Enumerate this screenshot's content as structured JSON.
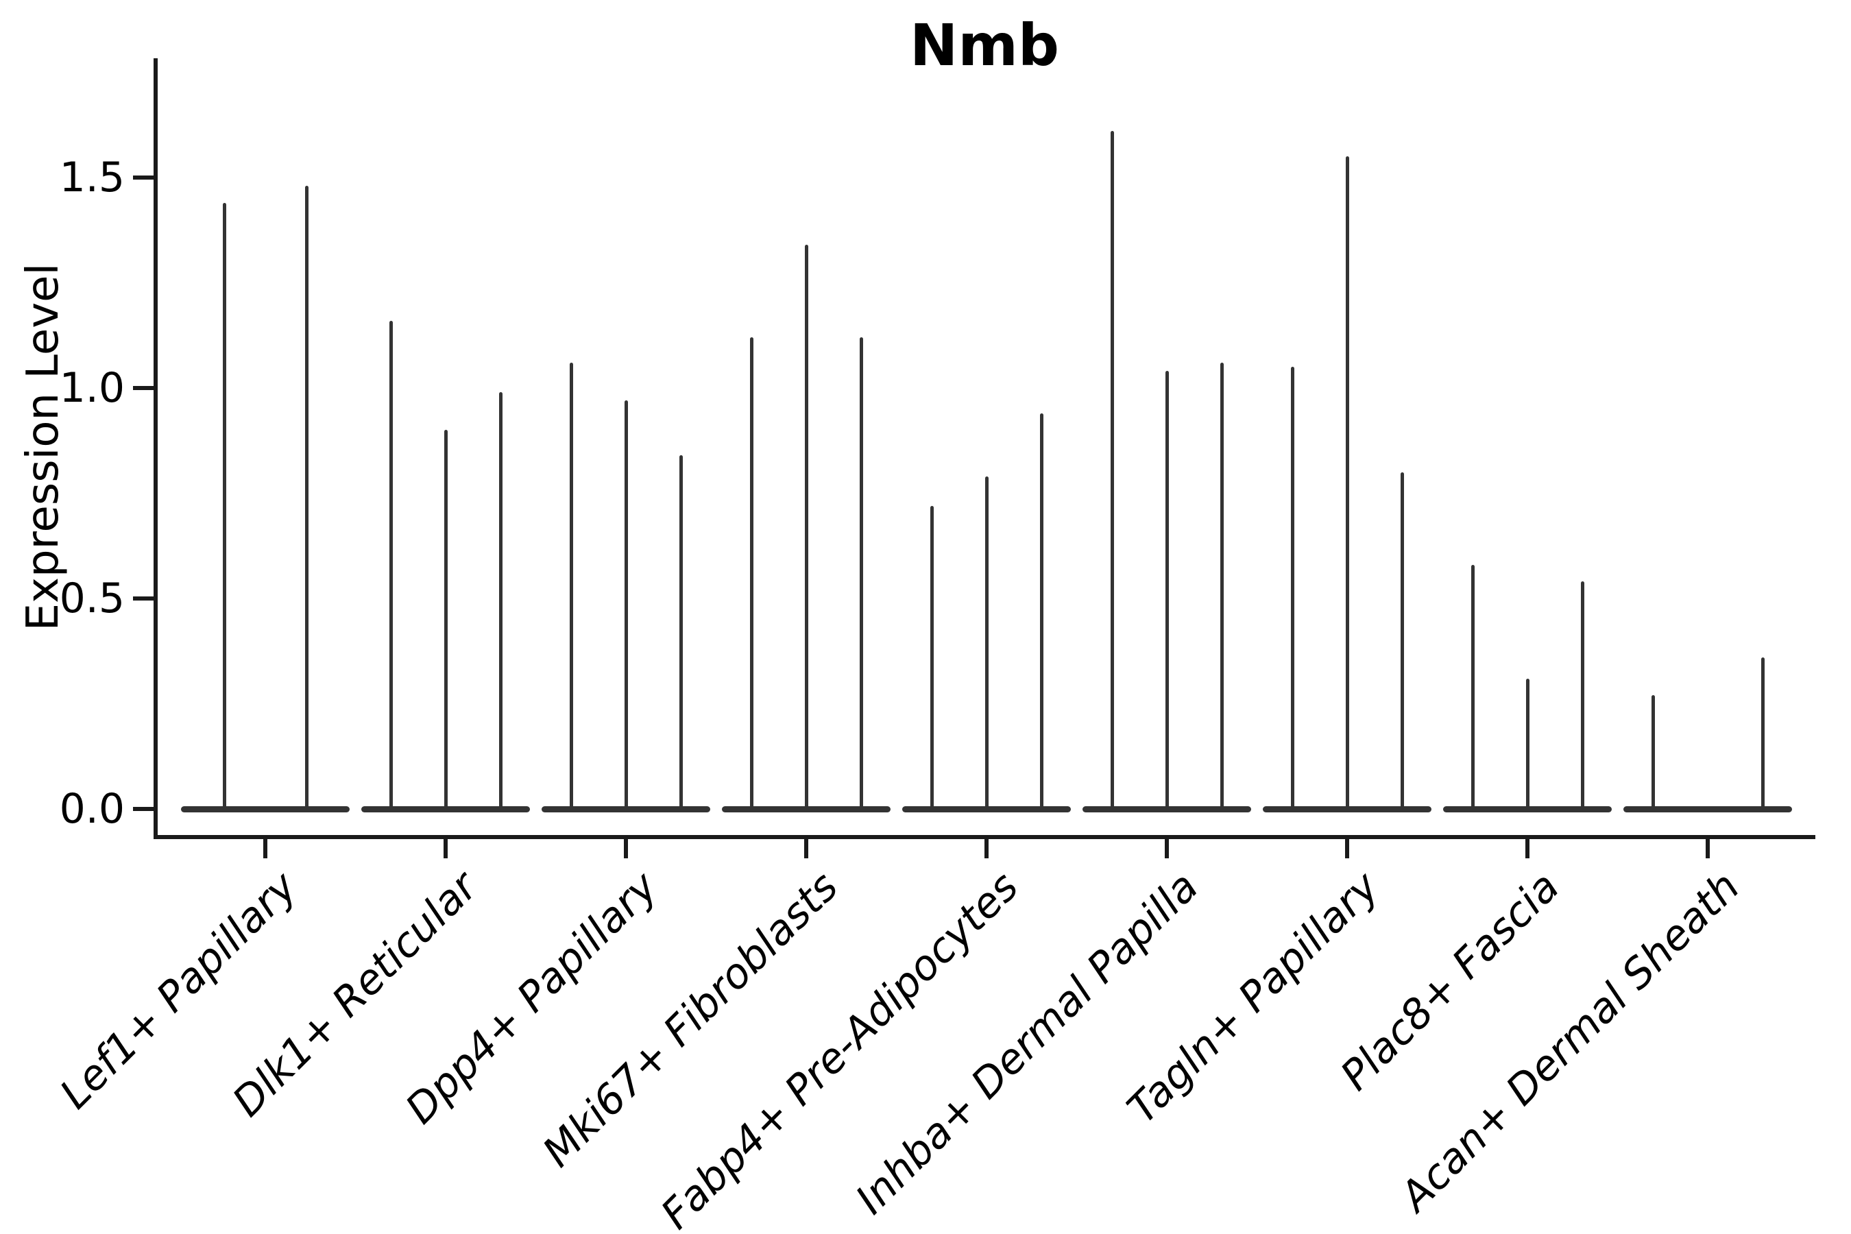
{
  "chart_data": {
    "type": "violin",
    "title": "Nmb",
    "xlabel": "",
    "ylabel": "Expression Level",
    "ylim": [
      -0.07,
      1.78
    ],
    "yticks": [
      "0.0",
      "0.5",
      "1.0",
      "1.5"
    ],
    "grid": false,
    "legend": "none",
    "ink_color": "#333333",
    "axis_color": "#1a1a1a",
    "categories": [
      "Lef1+ Papillary",
      "Dlk1+ Reticular",
      "Dpp4+ Papillary",
      "Mki67+ Fibroblasts",
      "Fabp4+ Pre-Adipocytes",
      "Inhba+ Dermal Papilla",
      "Tagln+ Papillary",
      "Plac8+ Fascia",
      "Acan+ Dermal Sheath"
    ],
    "groups": [
      {
        "category": "Lef1+ Papillary",
        "violins": [
          {
            "offset": -60,
            "max": 1.44
          },
          {
            "offset": 60,
            "max": 1.48
          }
        ]
      },
      {
        "category": "Dlk1+ Reticular",
        "violins": [
          {
            "offset": -80,
            "max": 1.16
          },
          {
            "offset": 0,
            "max": 0.9
          },
          {
            "offset": 80,
            "max": 0.99
          }
        ]
      },
      {
        "category": "Dpp4+ Papillary",
        "violins": [
          {
            "offset": -80,
            "max": 1.06
          },
          {
            "offset": 0,
            "max": 0.97
          },
          {
            "offset": 80,
            "max": 0.84
          }
        ]
      },
      {
        "category": "Mki67+ Fibroblasts",
        "violins": [
          {
            "offset": -80,
            "max": 1.12
          },
          {
            "offset": 0,
            "max": 1.34
          },
          {
            "offset": 80,
            "max": 1.12
          }
        ]
      },
      {
        "category": "Fabp4+ Pre-Adipocytes",
        "violins": [
          {
            "offset": -80,
            "max": 0.72
          },
          {
            "offset": 0,
            "max": 0.79
          },
          {
            "offset": 80,
            "max": 0.94
          }
        ]
      },
      {
        "category": "Inhba+ Dermal Papilla",
        "violins": [
          {
            "offset": -80,
            "max": 1.61
          },
          {
            "offset": 0,
            "max": 1.04
          },
          {
            "offset": 80,
            "max": 1.06
          }
        ]
      },
      {
        "category": "Tagln+ Papillary",
        "violins": [
          {
            "offset": -80,
            "max": 1.05
          },
          {
            "offset": 0,
            "max": 1.55
          },
          {
            "offset": 80,
            "max": 0.8
          }
        ]
      },
      {
        "category": "Plac8+ Fascia",
        "violins": [
          {
            "offset": -80,
            "max": 0.58
          },
          {
            "offset": 0,
            "max": 0.31
          },
          {
            "offset": 80,
            "max": 0.54
          }
        ]
      },
      {
        "category": "Acan+ Dermal Sheath",
        "violins": [
          {
            "offset": -80,
            "max": 0.27
          },
          {
            "offset": 0,
            "max": 0.0
          },
          {
            "offset": 80,
            "max": 0.36
          }
        ]
      }
    ]
  }
}
